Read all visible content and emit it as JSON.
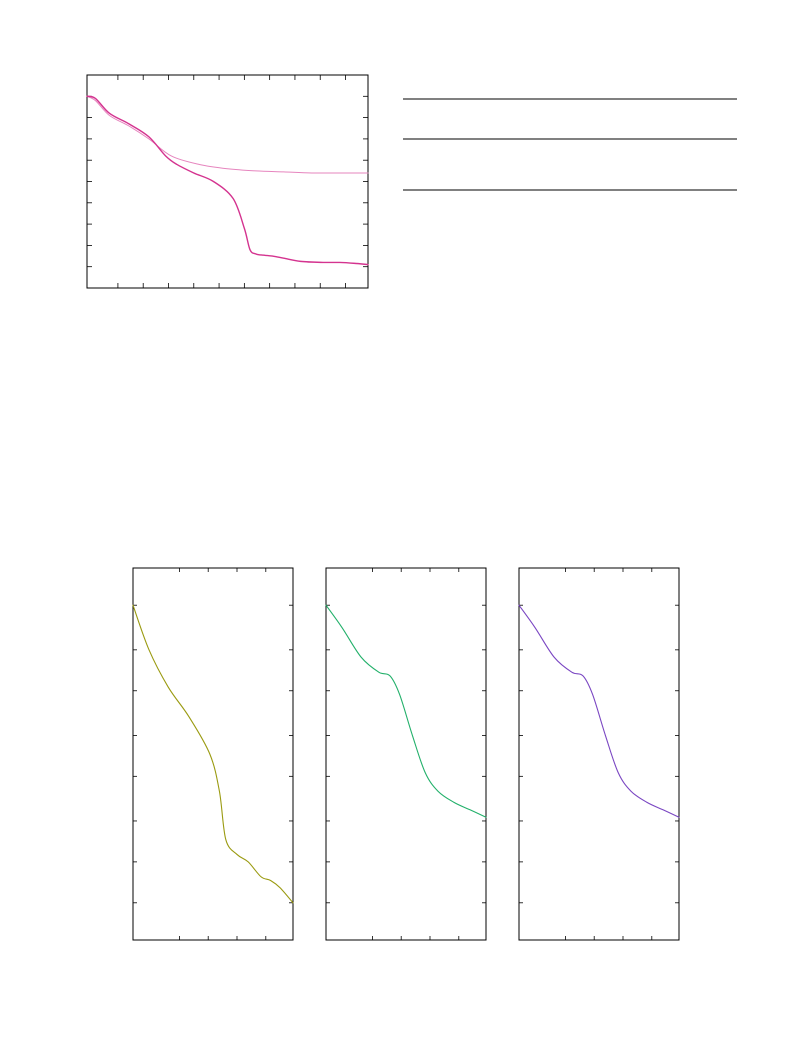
{
  "page": {
    "background": "#ffffff"
  },
  "chart_data": [
    {
      "id": "top",
      "type": "line",
      "grid": false,
      "xlim": [
        0,
        100
      ],
      "ylim": [
        0,
        100
      ],
      "series": [
        {
          "color": "#e685be",
          "stroke": "thin",
          "x": [
            0,
            3,
            8,
            15,
            22,
            30,
            40,
            50,
            60,
            70,
            80,
            90,
            100
          ],
          "y": [
            90,
            88,
            81,
            76,
            70,
            62,
            58,
            56,
            55,
            54.5,
            54,
            54,
            54
          ]
        },
        {
          "color": "#d4338f",
          "stroke": "main",
          "x": [
            0,
            3,
            8,
            15,
            22,
            28,
            32,
            38,
            45,
            52,
            56,
            58,
            60,
            62,
            66,
            70,
            76,
            84,
            90,
            96,
            100
          ],
          "y": [
            90,
            89,
            82,
            77,
            71,
            62,
            58,
            54,
            50,
            42,
            28,
            18,
            16,
            15.5,
            15,
            14,
            12.5,
            12,
            12,
            11.5,
            11
          ]
        }
      ],
      "x_ticks": [
        0,
        11,
        20,
        29,
        38,
        47,
        56,
        65,
        74,
        83,
        92,
        100
      ],
      "y_ticks": [
        10,
        20,
        30,
        40,
        50,
        60,
        70,
        80,
        90
      ]
    },
    {
      "id": "bottom-1",
      "type": "line",
      "grid": false,
      "xlim": [
        0,
        100
      ],
      "ylim": [
        0,
        100
      ],
      "series": [
        {
          "color": "#9a9a10",
          "x": [
            0,
            10,
            22,
            35,
            48,
            54,
            58,
            65,
            72,
            80,
            86,
            92,
            100
          ],
          "y": [
            90,
            78,
            68,
            60,
            50,
            40,
            27,
            23,
            21,
            17,
            16,
            14,
            10
          ]
        }
      ],
      "x_ticks": [
        0,
        29,
        47,
        65,
        83,
        100
      ],
      "y_ticks": [
        10,
        21,
        32,
        44,
        55,
        67,
        78,
        90
      ]
    },
    {
      "id": "bottom-2",
      "type": "line",
      "grid": false,
      "xlim": [
        0,
        100
      ],
      "ylim": [
        0,
        100
      ],
      "series": [
        {
          "color": "#22b06a",
          "x": [
            0,
            10,
            22,
            33,
            40,
            46,
            54,
            62,
            70,
            80,
            90,
            100
          ],
          "y": [
            90,
            84,
            76,
            72,
            71,
            66,
            55,
            45,
            40,
            37,
            35,
            33
          ]
        }
      ],
      "x_ticks": [
        0,
        29,
        47,
        65,
        83,
        100
      ],
      "y_ticks": [
        10,
        21,
        32,
        44,
        55,
        67,
        78,
        90
      ]
    },
    {
      "id": "bottom-3",
      "type": "line",
      "grid": false,
      "xlim": [
        0,
        100
      ],
      "ylim": [
        0,
        100
      ],
      "series": [
        {
          "color": "#7a46c2",
          "x": [
            0,
            10,
            22,
            33,
            40,
            46,
            54,
            62,
            70,
            80,
            90,
            100
          ],
          "y": [
            90,
            84,
            76,
            72,
            71,
            66,
            55,
            45,
            40,
            37,
            35,
            33
          ]
        }
      ],
      "x_ticks": [
        0,
        29,
        47,
        65,
        83,
        100
      ],
      "y_ticks": [
        10,
        21,
        32,
        44,
        55,
        67,
        78,
        90
      ]
    }
  ],
  "legend_table": {
    "rows": 3
  }
}
